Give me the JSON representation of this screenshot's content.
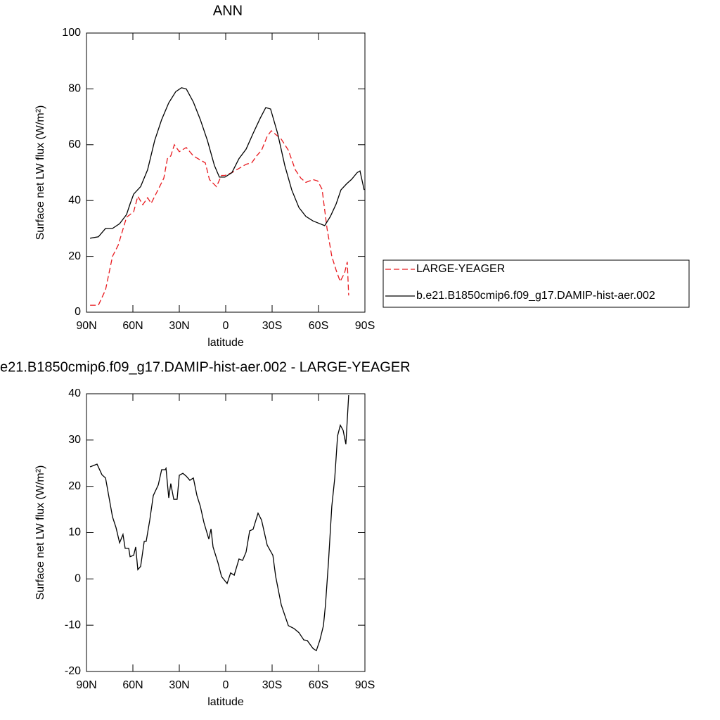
{
  "chart_data": [
    {
      "type": "line",
      "title": "ANN",
      "x_label": "latitude",
      "y_label": "Surface net LW flux (W/m²)",
      "xlim": [
        90,
        -90
      ],
      "xticks": [
        {
          "value": 90,
          "label": "90N"
        },
        {
          "value": 60,
          "label": "60N"
        },
        {
          "value": 30,
          "label": "30N"
        },
        0,
        {
          "value": -30,
          "label": "30S"
        },
        {
          "value": -60,
          "label": "60S"
        },
        {
          "value": -90,
          "label": "90S"
        }
      ],
      "ylim": [
        0,
        100
      ],
      "yticks": [
        0,
        20,
        40,
        60,
        80,
        100
      ],
      "legend": "right",
      "series": [
        {
          "name": "LARGE-YEAGER",
          "color": "#e8191e",
          "line_style": "dashed",
          "x": [
            87.7,
            82.3,
            77.7,
            73.2,
            69.5,
            64.1,
            59.5,
            56.8,
            53.6,
            50.5,
            48.2,
            43.6,
            40,
            37.7,
            35.5,
            33.2,
            30,
            25.5,
            20.9,
            16.4,
            13.2,
            10.5,
            6,
            2.7,
            0.5,
            -4,
            -8.6,
            -13.2,
            -16.8,
            -20,
            -23.2,
            -26.8,
            -29.5,
            -32.7,
            -35.9,
            -40.5,
            -45,
            -48.6,
            -51.8,
            -56.4,
            -59.5,
            -62.3,
            -65.5,
            -68.6,
            -71.4,
            -74,
            -76.8,
            -78.6,
            -79.5
          ],
          "values": [
            2.5,
            2.5,
            8,
            20,
            24,
            34,
            36,
            41.5,
            38.5,
            41,
            39,
            44,
            48,
            55,
            56,
            60,
            57.5,
            59,
            56,
            54.5,
            53.5,
            47.5,
            45,
            49,
            49,
            50,
            51.5,
            53,
            53.5,
            56,
            58,
            63,
            65,
            63.5,
            62,
            58,
            51,
            48,
            46.5,
            47.5,
            47,
            44,
            30,
            20,
            15,
            11,
            14,
            18,
            6
          ]
        },
        {
          "name": "b.e21.B1850cmip6.f09_g17.DAMIP-hist-aer.002",
          "color": "#000000",
          "line_style": "solid",
          "x": [
            87.7,
            82.3,
            77.7,
            73.2,
            68.6,
            64.1,
            61.8,
            59.5,
            55,
            50.5,
            45.9,
            41.4,
            36.8,
            32.3,
            28.6,
            25.5,
            20.9,
            16.4,
            11.8,
            7.3,
            4.1,
            0.5,
            -4,
            -8.6,
            -13.2,
            -17.7,
            -22.3,
            -25.9,
            -29,
            -33.6,
            -38.2,
            -42.7,
            -47.3,
            -51.8,
            -56.4,
            -60.9,
            -64,
            -67.7,
            -71.4,
            -74.5,
            -78.2,
            -81.4,
            -85,
            -86.8,
            -89.5
          ],
          "values": [
            26.5,
            27,
            30,
            30,
            31.7,
            35,
            38.8,
            42.3,
            45,
            51,
            61.5,
            69,
            75,
            79,
            80.4,
            80,
            75.3,
            69,
            61.5,
            52.6,
            48.4,
            48.4,
            50,
            55,
            58.4,
            64,
            69.5,
            73.3,
            72.8,
            64,
            52.6,
            43.8,
            37.5,
            34.3,
            32.7,
            31.7,
            31,
            34.3,
            38.8,
            43.8,
            46,
            47.6,
            50,
            50.6,
            43.8
          ]
        }
      ]
    },
    {
      "type": "line",
      "title": "e21.B1850cmip6.f09_g17.DAMIP-hist-aer.002 - LARGE-YEAGER",
      "x_label": "latitude",
      "y_label": "Surface net LW flux (W/m²)",
      "xlim": [
        90,
        -90
      ],
      "xticks": [
        {
          "value": 90,
          "label": "90N"
        },
        {
          "value": 60,
          "label": "60N"
        },
        {
          "value": 30,
          "label": "30N"
        },
        0,
        {
          "value": -30,
          "label": "30S"
        },
        {
          "value": -60,
          "label": "60S"
        },
        {
          "value": -90,
          "label": "90S"
        }
      ],
      "ylim": [
        -20,
        40
      ],
      "yticks": [
        -20,
        -10,
        0,
        10,
        20,
        30,
        40
      ],
      "color": "#000000",
      "x": [
        87.7,
        83.2,
        80,
        77.7,
        73.2,
        70.9,
        68.6,
        66.4,
        65,
        62.7,
        61.8,
        59.5,
        58.2,
        56.8,
        55,
        52.7,
        51.4,
        49.1,
        46.8,
        43.6,
        41.4,
        39.1,
        38.6,
        36.8,
        35.5,
        33.6,
        31.4,
        30,
        27.7,
        25.5,
        23.2,
        20.9,
        18.6,
        16.4,
        14.1,
        10.9,
        9.5,
        8.2,
        5,
        2.7,
        -0.9,
        -3.2,
        -5.5,
        -8.6,
        -10.9,
        -13.2,
        -15.5,
        -17.7,
        -20.9,
        -23.2,
        -26.8,
        -30.5,
        -32.3,
        -35.9,
        -40.5,
        -44.1,
        -47.3,
        -50.5,
        -52.7,
        -56.4,
        -58.6,
        -60.9,
        -63.2,
        -64.5,
        -66.4,
        -68.6,
        -70.5,
        -72.3,
        -74.1,
        -75.9,
        -77.7,
        -79.5
      ],
      "values": [
        24.2,
        24.8,
        22.5,
        21.8,
        13.4,
        11.1,
        7.8,
        9.6,
        6.6,
        6.6,
        4.8,
        5.1,
        6.9,
        2,
        2.7,
        8.1,
        8.1,
        12.7,
        18,
        20.3,
        23.6,
        23.6,
        23.9,
        17.5,
        20.6,
        17.2,
        17.2,
        22.4,
        22.8,
        22.2,
        21.3,
        21.8,
        18,
        15.7,
        12.2,
        8.6,
        10.8,
        6.9,
        3.5,
        0.5,
        -1,
        1.3,
        0.8,
        4.3,
        4,
        5.8,
        10.4,
        10.7,
        14.2,
        12.7,
        7.3,
        5.1,
        0.5,
        -5.6,
        -10.1,
        -10.7,
        -11.6,
        -13.2,
        -13.3,
        -15,
        -15.5,
        -13.2,
        -10.1,
        -5.6,
        3.5,
        15.7,
        21.8,
        30.9,
        33.2,
        32.1,
        29.1,
        39.7
      ]
    }
  ]
}
